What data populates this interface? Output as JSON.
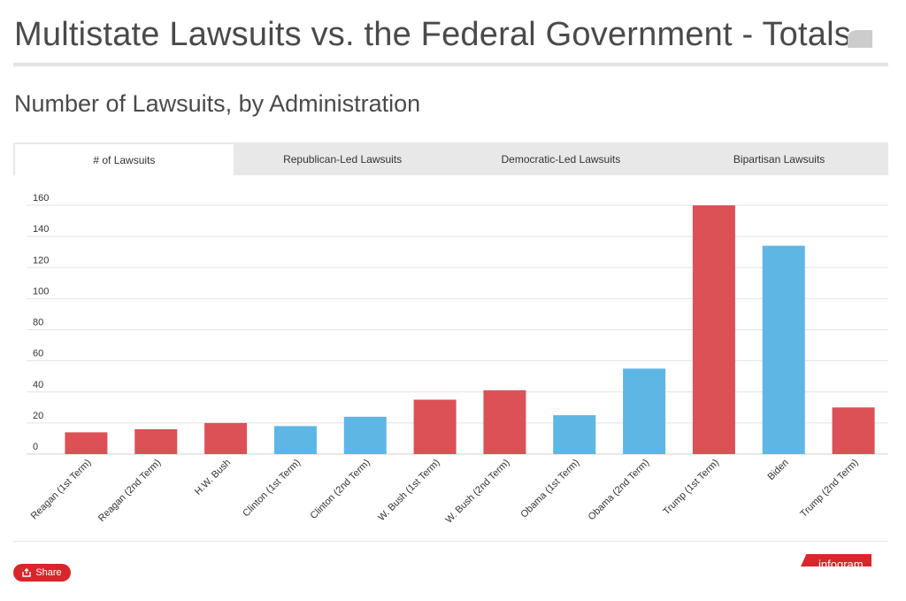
{
  "page": {
    "title": "Multistate Lawsuits vs. the Federal Government - Totals",
    "chart_heading": "Number of Lawsuits, by Administration"
  },
  "tabs": [
    {
      "label": "# of Lawsuits",
      "active": true
    },
    {
      "label": "Republican-Led Lawsuits",
      "active": false
    },
    {
      "label": "Democratic-Led Lawsuits",
      "active": false
    },
    {
      "label": "Bipartisan Lawsuits",
      "active": false
    }
  ],
  "footer": {
    "share_label": "Share",
    "brand_text": "infogram"
  },
  "colors": {
    "republican": "#dc5155",
    "democratic": "#5eb6e4",
    "share": "#d9262c",
    "grid": "#e3e3e3"
  },
  "chart_data": {
    "type": "bar",
    "title": "Number of Lawsuits, by Administration",
    "xlabel": "",
    "ylabel": "",
    "ylim": [
      0,
      160
    ],
    "yticks": [
      0,
      20,
      40,
      60,
      80,
      100,
      120,
      140,
      160
    ],
    "grid": true,
    "categories": [
      "Reagan (1st Term)",
      "Reagan (2nd Term)",
      "H.W. Bush",
      "Clinton (1st Term)",
      "Clinton (2nd Term)",
      "W. Bush (1st Term)",
      "W. Bush (2nd Term)",
      "Obama (1st Term)",
      "Obama (2nd Term)",
      "Trump (1st Term)",
      "Biden",
      "Trump (2nd Term)"
    ],
    "values": [
      14,
      16,
      20,
      18,
      24,
      35,
      41,
      25,
      55,
      160,
      134,
      30
    ],
    "party": [
      "R",
      "R",
      "R",
      "D",
      "D",
      "R",
      "R",
      "D",
      "D",
      "R",
      "D",
      "R"
    ]
  }
}
